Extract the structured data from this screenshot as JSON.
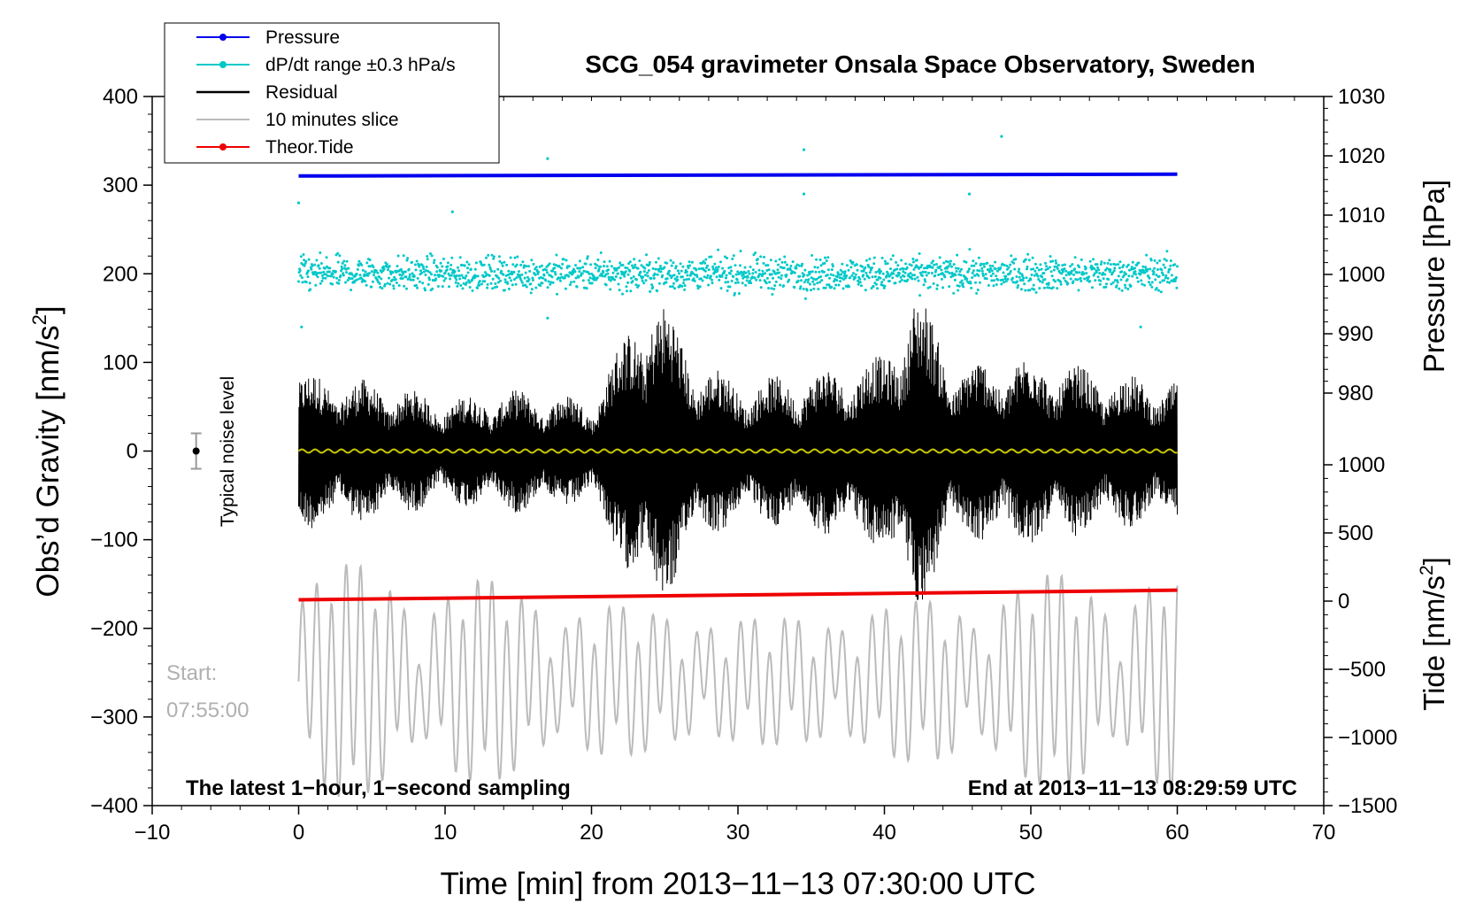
{
  "chart_data": {
    "type": "line",
    "title": "SCG_054 gravimeter Onsala Space Observatory, Sweden",
    "xlabel": "Time [min] from 2013−11−13 07:30:00 UTC",
    "ylabel_left_main": "Obs’d Gravity [nm/s",
    "ylabel_left_sup": "2",
    "ylabel_left_close": "]",
    "ylabel_right_top": "Pressure [hPa]",
    "ylabel_right_bottom_main": "Tide [nm/s",
    "ylabel_right_bottom_sup": "2",
    "ylabel_right_bottom_close": "]",
    "xlim": [
      -10,
      70
    ],
    "ylim_left": [
      -400,
      400
    ],
    "xticks": [
      -10,
      0,
      10,
      20,
      30,
      40,
      50,
      60,
      70
    ],
    "xtick_labels": [
      "−10",
      "0",
      "10",
      "20",
      "30",
      "40",
      "50",
      "60",
      "70"
    ],
    "yticks_left": [
      400,
      300,
      200,
      100,
      0,
      -100,
      -200,
      -300,
      -400
    ],
    "ytick_labels_left": [
      "400",
      "300",
      "200",
      "100",
      "0",
      "−100",
      "−200",
      "−300",
      "−400"
    ],
    "pressure_axis": {
      "range": [
        970,
        1030
      ],
      "ticks": [
        1030,
        1020,
        1010,
        1000,
        990,
        980
      ],
      "labels": [
        "1030",
        "1020",
        "1010",
        "1000",
        "990",
        "980"
      ]
    },
    "tide_axis": {
      "range": [
        -1500,
        1500
      ],
      "ticks": [
        1000,
        500,
        0,
        -500,
        -1000,
        -1500
      ],
      "labels": [
        "1000",
        "500",
        "0",
        "−500",
        "−1000",
        "−1500"
      ]
    },
    "legend": [
      {
        "label": "Pressure",
        "color": "#0000ee",
        "marker": true
      },
      {
        "label": "dP/dt range ±0.3 hPa/s",
        "color": "#00c8c8",
        "marker": true
      },
      {
        "label": "Residual",
        "color": "#000000",
        "marker": false
      },
      {
        "label": "10 minutes slice",
        "color": "#bbbbbb",
        "marker": false
      },
      {
        "label": "Theor.Tide",
        "color": "#ee0000",
        "marker": true
      }
    ],
    "series": [
      {
        "name": "Pressure",
        "axis": "pressure",
        "color": "#0000ee",
        "x_range": [
          0,
          60
        ],
        "values_hpa": [
          1016.6,
          1016.9
        ]
      },
      {
        "name": "dP/dt range ±0.3 hPa/s",
        "axis": "left",
        "color": "#00c8c8",
        "x_range": [
          0,
          60
        ],
        "center_nm_s2": 200,
        "spread_nm_s2": 20
      },
      {
        "name": "Residual",
        "axis": "left",
        "color": "#000000",
        "x_range": [
          0,
          60
        ],
        "envelope_minutes": [
          0,
          5,
          10,
          15,
          20,
          24,
          25,
          27,
          30,
          35,
          40,
          42,
          45,
          50,
          55,
          60
        ],
        "envelope_nm_s2": [
          90,
          80,
          60,
          70,
          60,
          190,
          170,
          110,
          80,
          90,
          110,
          190,
          100,
          110,
          90,
          80
        ]
      },
      {
        "name": "Residual mean",
        "axis": "left",
        "color": "#c8c800",
        "x_range": [
          0,
          60
        ],
        "value_nm_s2": 0
      },
      {
        "name": "10 minutes slice",
        "axis": "left",
        "color": "#bbbbbb",
        "x_range": [
          0,
          60
        ],
        "center_nm_s2": -260,
        "amplitude_nm_s2": 120
      },
      {
        "name": "Theor.Tide",
        "axis": "tide",
        "color": "#ee0000",
        "x_range": [
          0,
          60
        ],
        "values_nm_s2": [
          10,
          80
        ]
      }
    ],
    "noise_marker": {
      "x": -7,
      "value": 0,
      "error": 20,
      "label": "Typical noise level"
    },
    "annotations": {
      "start_label": "Start:",
      "start_time": "07:55:00",
      "bottom_left": "The latest 1−hour, 1−second sampling",
      "bottom_right": "End at 2013−11−13 08:29:59 UTC"
    }
  }
}
